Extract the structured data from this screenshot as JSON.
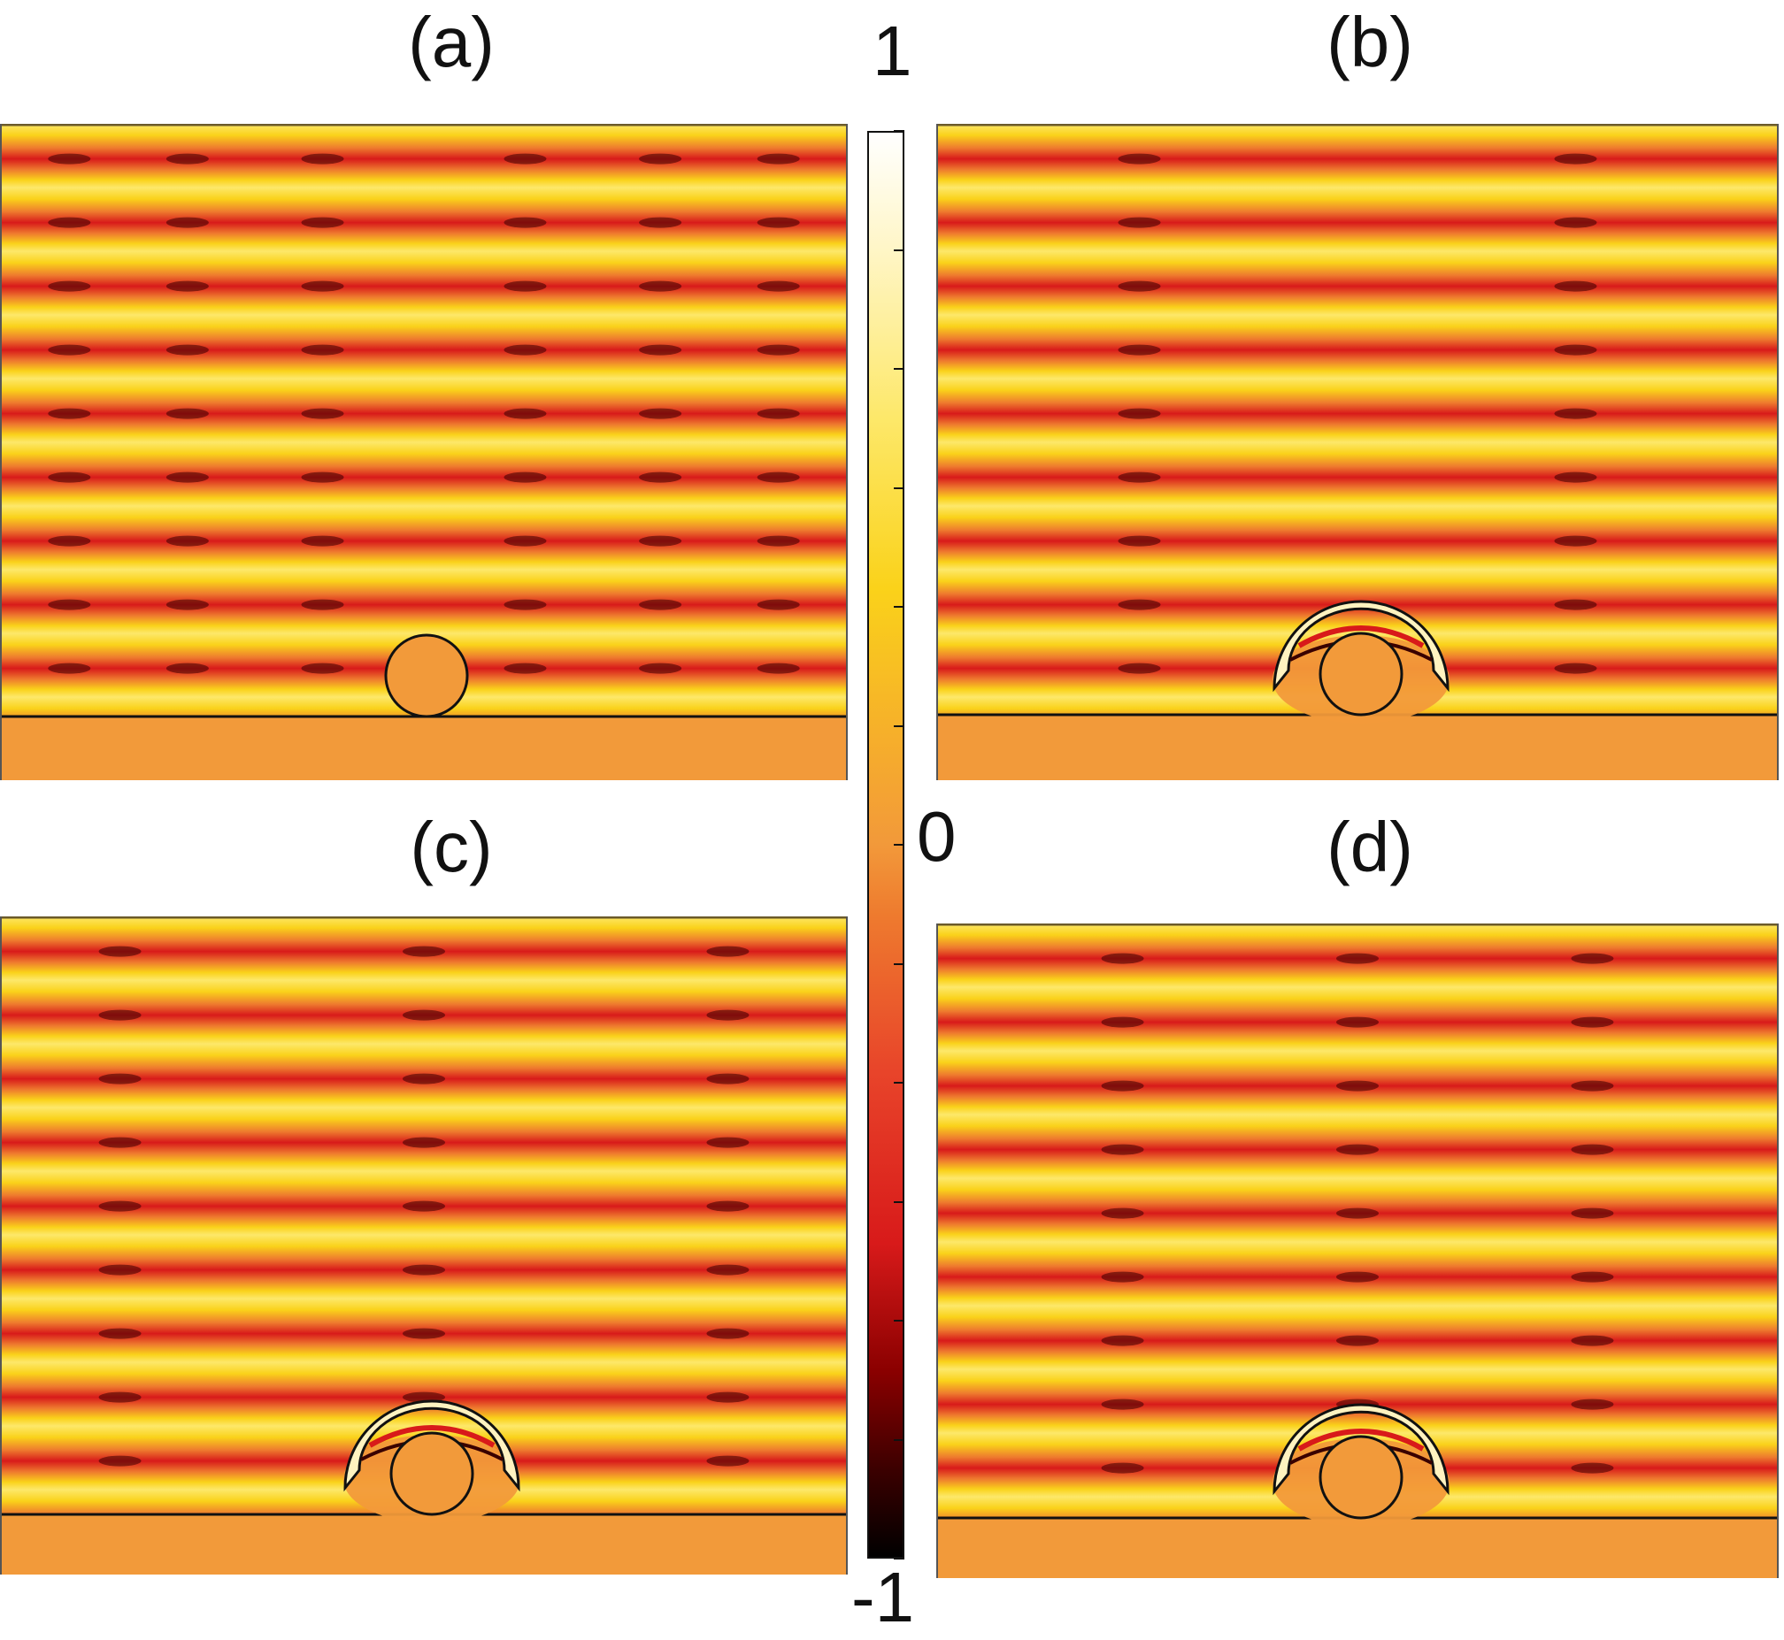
{
  "panels": [
    {
      "label": "(a)",
      "structure": "bare cylinder on substrate"
    },
    {
      "label": "(b)",
      "structure": "cylinder with cloak shell"
    },
    {
      "label": "(c)",
      "structure": "cylinder with cloak shell"
    },
    {
      "label": "(d)",
      "structure": "cylinder with cloak shell"
    }
  ],
  "colorbar": {
    "max_label": "1",
    "mid_label": "0",
    "min_label": "-1",
    "tick_count": 13
  },
  "colors": {
    "substrate": "#F29A3A",
    "cylinder": "#F29A3A",
    "stripe_yellow": "#FAD21A",
    "stripe_red": "#D81A1A",
    "outline": "#111111"
  }
}
